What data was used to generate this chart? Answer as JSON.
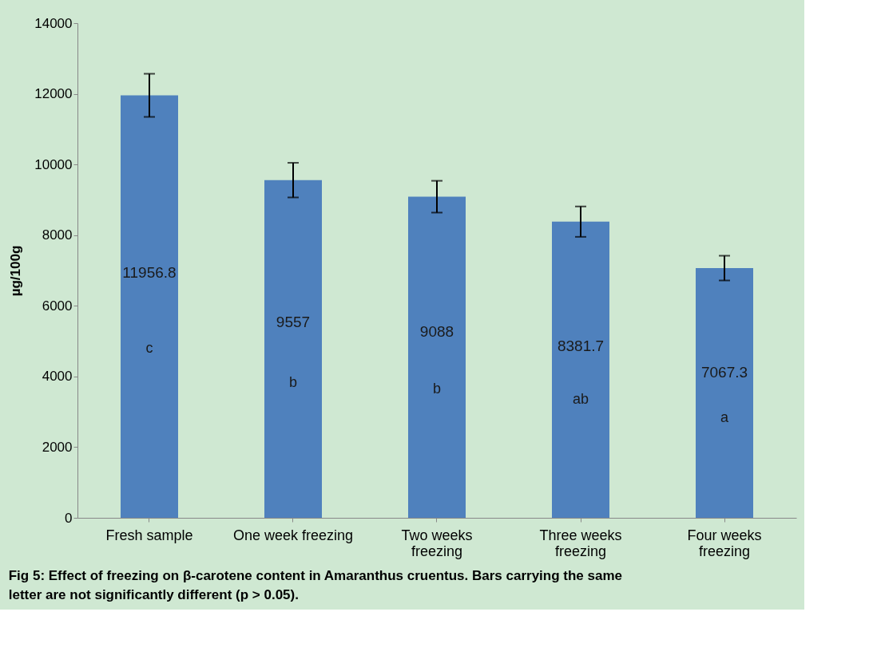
{
  "chart_data": {
    "type": "bar",
    "title": "Fig 5: Effect of freezing on β-carotene content in Amaranthus cruentus. Bars carrying the same letter are not significantly different (p > 0.05).",
    "ylabel": "µg/100g",
    "categories": [
      "Fresh sample",
      "One week freezing",
      "Two weeks freezing",
      "Three weeks freezing",
      "Four weeks freezing"
    ],
    "series": [
      {
        "color": "#4f81bd",
        "values": [
          11956.8,
          9557,
          9088,
          8381.7,
          7067.3
        ],
        "errors": [
          610,
          490,
          450,
          430,
          350
        ]
      }
    ],
    "data_labels": true,
    "annotations": [
      "c",
      "b",
      "b",
      "ab",
      "a"
    ],
    "ylim": [
      0,
      14000
    ],
    "yticks": [
      0,
      2000,
      4000,
      6000,
      8000,
      10000,
      12000,
      14000
    ],
    "grid": false
  }
}
